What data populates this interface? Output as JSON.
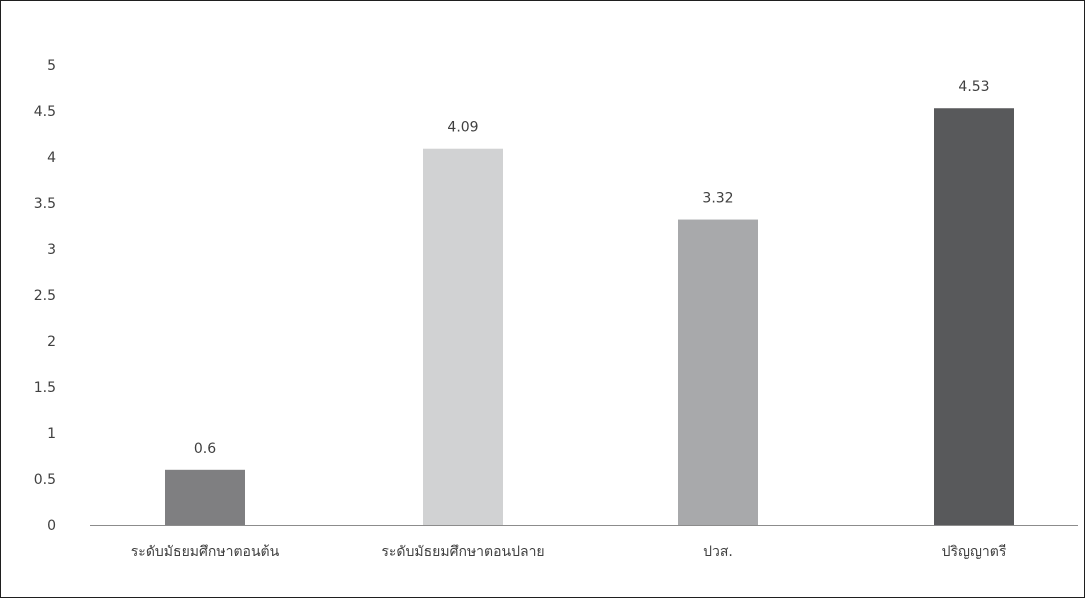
{
  "chart_data": {
    "type": "bar",
    "title": "",
    "xlabel": "",
    "ylabel": "",
    "categories": [
      "ระดับมัธยมศึกษาตอนต้น",
      "ระดับมัธยมศึกษาตอนปลาย",
      "ปวส.",
      "ปริญญาตรี"
    ],
    "values": [
      0.6,
      4.09,
      3.32,
      4.53
    ],
    "data_labels": [
      "0.6",
      "4.09",
      "3.32",
      "4.53"
    ],
    "colors": [
      "#7f7f81",
      "#d1d2d3",
      "#a8a9ab",
      "#58595b"
    ],
    "ylim": [
      0,
      5
    ],
    "yticks": [
      "0",
      "0.5",
      "1",
      "1.5",
      "2",
      "2.5",
      "3",
      "3.5",
      "4",
      "4.5",
      "5"
    ],
    "grid": false,
    "legend": "none"
  }
}
